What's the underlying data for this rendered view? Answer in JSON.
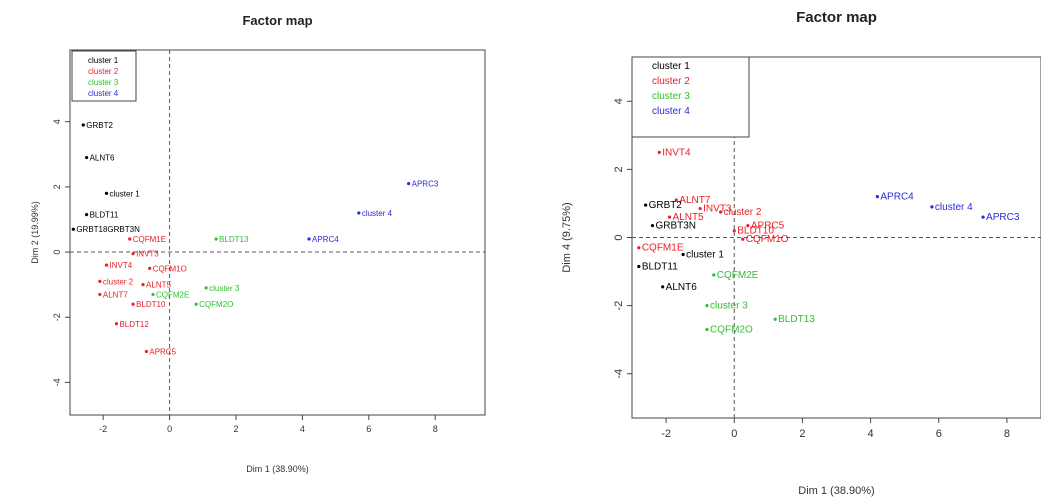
{
  "chart_data": [
    {
      "type": "scatter",
      "title": "Factor map",
      "xlabel": "Dim 1 (38.90%)",
      "ylabel": "Dim 2 (19.99%)",
      "xlim": [
        -3,
        9.5
      ],
      "ylim": [
        -5,
        6.2
      ],
      "xticks": [
        "-2",
        "0",
        "2",
        "4",
        "6",
        "8"
      ],
      "yticks": [
        "-4",
        "-2",
        "0",
        "2",
        "4"
      ],
      "legend": {
        "placement": "top-left",
        "items": [
          {
            "label": "cluster 1",
            "color": "#000000"
          },
          {
            "label": "cluster 2",
            "color": "#e8202a"
          },
          {
            "label": "cluster 3",
            "color": "#2fc02f"
          },
          {
            "label": "cluster 4",
            "color": "#2a2ad8"
          }
        ]
      },
      "points": [
        {
          "label": "GRBT2",
          "x": -2.6,
          "y": 3.9,
          "cluster": 1
        },
        {
          "label": "ALNT6",
          "x": -2.5,
          "y": 2.9,
          "cluster": 1
        },
        {
          "label": "cluster 1",
          "x": -1.9,
          "y": 1.8,
          "cluster": 1
        },
        {
          "label": "BLDT11",
          "x": -2.5,
          "y": 1.15,
          "cluster": 1
        },
        {
          "label": "GRBT18GRBT3N",
          "x": -2.9,
          "y": 0.7,
          "cluster": 1
        },
        {
          "label": "CQFM1E",
          "x": -1.2,
          "y": 0.4,
          "cluster": 2
        },
        {
          "label": "BLDT13",
          "x": 1.4,
          "y": 0.4,
          "cluster": 3
        },
        {
          "label": "APRC4",
          "x": 4.2,
          "y": 0.4,
          "cluster": 4
        },
        {
          "label": "cluster 4",
          "x": 5.7,
          "y": 1.2,
          "cluster": 4
        },
        {
          "label": "APRC3",
          "x": 7.2,
          "y": 2.1,
          "cluster": 4
        },
        {
          "label": "INVT3",
          "x": -1.1,
          "y": -0.05,
          "cluster": 2
        },
        {
          "label": "INVT4",
          "x": -1.9,
          "y": -0.4,
          "cluster": 2
        },
        {
          "label": "CQFM1O",
          "x": -0.6,
          "y": -0.5,
          "cluster": 2
        },
        {
          "label": "cluster 2",
          "x": -2.1,
          "y": -0.9,
          "cluster": 2
        },
        {
          "label": "ALNT5",
          "x": -0.8,
          "y": -1.0,
          "cluster": 2
        },
        {
          "label": "ALNT7",
          "x": -2.1,
          "y": -1.3,
          "cluster": 2
        },
        {
          "label": "CQFM2E",
          "x": -0.5,
          "y": -1.3,
          "cluster": 3
        },
        {
          "label": "cluster 3",
          "x": 1.1,
          "y": -1.1,
          "cluster": 3
        },
        {
          "label": "BLDT10",
          "x": -1.1,
          "y": -1.6,
          "cluster": 2
        },
        {
          "label": "CQFM2O",
          "x": 0.8,
          "y": -1.6,
          "cluster": 3
        },
        {
          "label": "BLDT12",
          "x": -1.6,
          "y": -2.2,
          "cluster": 2
        },
        {
          "label": "APRC5",
          "x": -0.7,
          "y": -3.05,
          "cluster": 2
        }
      ]
    },
    {
      "type": "scatter",
      "title": "Factor map",
      "xlabel": "Dim 1 (38.90%)",
      "ylabel": "Dim 4 (9.75%)",
      "xlim": [
        -3,
        9
      ],
      "ylim": [
        -5.3,
        5.3
      ],
      "xticks": [
        "-2",
        "0",
        "2",
        "4",
        "6",
        "8"
      ],
      "yticks": [
        "-4",
        "-2",
        "0",
        "2",
        "4"
      ],
      "legend": {
        "placement": "top-left",
        "items": [
          {
            "label": "cluster 1",
            "color": "#000000"
          },
          {
            "label": "cluster 2",
            "color": "#e8202a"
          },
          {
            "label": "cluster 3",
            "color": "#2fc02f"
          },
          {
            "label": "cluster 4",
            "color": "#2a2ad8"
          }
        ]
      },
      "points": [
        {
          "label": "INVT4",
          "x": -2.2,
          "y": 2.5,
          "cluster": 2
        },
        {
          "label": "APRC4",
          "x": 4.2,
          "y": 1.2,
          "cluster": 4
        },
        {
          "label": "cluster 4",
          "x": 5.8,
          "y": 0.9,
          "cluster": 4
        },
        {
          "label": "APRC3",
          "x": 7.3,
          "y": 0.6,
          "cluster": 4
        },
        {
          "label": "ALNT7",
          "x": -1.7,
          "y": 1.1,
          "cluster": 2
        },
        {
          "label": "GRBT2",
          "x": -2.6,
          "y": 0.95,
          "cluster": 1
        },
        {
          "label": "INVT3",
          "x": -1.0,
          "y": 0.85,
          "cluster": 2
        },
        {
          "label": "cluster 2",
          "x": -0.4,
          "y": 0.75,
          "cluster": 2
        },
        {
          "label": "ALNT5",
          "x": -1.9,
          "y": 0.6,
          "cluster": 2
        },
        {
          "label": "APRC5",
          "x": 0.4,
          "y": 0.35,
          "cluster": 2
        },
        {
          "label": "GRBT3N",
          "x": -2.4,
          "y": 0.35,
          "cluster": 1
        },
        {
          "label": "BLDT10",
          "x": 0.0,
          "y": 0.2,
          "cluster": 2
        },
        {
          "label": "CQFM1O",
          "x": 0.25,
          "y": -0.05,
          "cluster": 2
        },
        {
          "label": "CQFM1E",
          "x": -2.8,
          "y": -0.3,
          "cluster": 2
        },
        {
          "label": "cluster 1",
          "x": -1.5,
          "y": -0.5,
          "cluster": 1
        },
        {
          "label": "BLDT11",
          "x": -2.8,
          "y": -0.85,
          "cluster": 1
        },
        {
          "label": "CQFM2E",
          "x": -0.6,
          "y": -1.1,
          "cluster": 3
        },
        {
          "label": "ALNT6",
          "x": -2.1,
          "y": -1.45,
          "cluster": 1
        },
        {
          "label": "cluster 3",
          "x": -0.8,
          "y": -2.0,
          "cluster": 3
        },
        {
          "label": "BLDT13",
          "x": 1.2,
          "y": -2.4,
          "cluster": 3
        },
        {
          "label": "CQFM2O",
          "x": -0.8,
          "y": -2.7,
          "cluster": 3
        }
      ]
    }
  ]
}
